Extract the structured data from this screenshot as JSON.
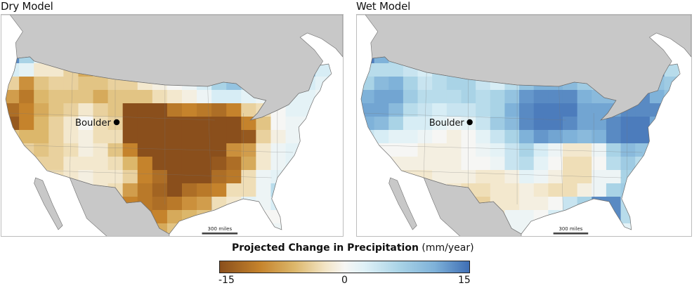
{
  "panels": [
    {
      "id": "dry",
      "title": "Dry Model",
      "city_label": "Boulder",
      "scale_label": "300 miles"
    },
    {
      "id": "wet",
      "title": "Wet Model",
      "city_label": "Boulder",
      "scale_label": "300 miles"
    }
  ],
  "legend": {
    "title_bold": "Projected Change in Precipitation",
    "title_unit": "(mm/year)",
    "ticks": [
      "-15",
      "0",
      "15"
    ],
    "min": -15,
    "max": 15
  },
  "colors": {
    "land_outside": "#c8c8c8",
    "ocean": "#ffffff",
    "border": "#6e6e6e",
    "dry_extreme": "#8a4f1c",
    "wet_extreme": "#3f6fb5",
    "neutral": "#f6f6f4"
  },
  "chart_data": [
    {
      "type": "heatmap",
      "title": "Dry Model",
      "value_label": "Projected Change in Precipitation (mm/year)",
      "range": [
        -15,
        15
      ],
      "annotation": "Boulder",
      "grid_values": [
        [
          13,
          6,
          2,
          0,
          -3,
          -5,
          -4,
          -2,
          2,
          2,
          0,
          -1,
          -1,
          1,
          2,
          3,
          4,
          4,
          3,
          5,
          8,
          6
        ],
        [
          3,
          2,
          -2,
          -2,
          -4,
          -7,
          -4,
          -3,
          1,
          1,
          -1,
          -1,
          1,
          2,
          5,
          6,
          7,
          5,
          3,
          4,
          9,
          3
        ],
        [
          -4,
          -9,
          -5,
          -4,
          -4,
          -5,
          -5,
          -4,
          -4,
          -2,
          -1,
          0,
          1,
          3,
          6,
          8,
          5,
          3,
          2,
          2,
          3,
          2
        ],
        [
          -8,
          -11,
          -6,
          -5,
          -5,
          -5,
          -7,
          -5,
          -5,
          -5,
          -3,
          -2,
          -1,
          1,
          3,
          3,
          2,
          1,
          1,
          2,
          2,
          1
        ],
        [
          -12,
          -10,
          -7,
          -5,
          -4,
          -2,
          -4,
          -5,
          -15,
          -15,
          -15,
          -11,
          -10,
          -11,
          -12,
          -10,
          -4,
          -3,
          0,
          2,
          2,
          1
        ],
        [
          -14,
          -10,
          -6,
          -4,
          -2,
          0,
          -3,
          -4,
          -15,
          -15,
          -15,
          -15,
          -15,
          -15,
          -15,
          -15,
          -10,
          -5,
          0,
          1,
          1,
          1
        ],
        [
          -5,
          -6,
          -6,
          -4,
          -2,
          -1,
          -3,
          -3,
          -15,
          -15,
          -15,
          -15,
          -15,
          -15,
          -15,
          -15,
          -14,
          -4,
          -1,
          1,
          1,
          1
        ],
        [
          -4,
          -4,
          -5,
          -4,
          -3,
          -1,
          -2,
          -5,
          -10,
          -15,
          -15,
          -15,
          -15,
          -15,
          -15,
          -9,
          -8,
          -2,
          1,
          2,
          4,
          1
        ],
        [
          -3,
          -3,
          -4,
          -4,
          -2,
          -2,
          -2,
          -3,
          -6,
          -10,
          -15,
          -15,
          -15,
          -15,
          -14,
          -12,
          -7,
          -2,
          1,
          2,
          1,
          1
        ],
        [
          -2,
          -3,
          -2,
          -3,
          -2,
          -1,
          -2,
          -2,
          -4,
          -10,
          -12,
          -15,
          -15,
          -15,
          -12,
          -11,
          -3,
          1,
          2,
          2,
          1,
          1
        ],
        [
          -1,
          -2,
          -2,
          -2,
          -1,
          -1,
          -2,
          -3,
          -8,
          -11,
          -13,
          -15,
          -12,
          -11,
          -10,
          -3,
          -3,
          1,
          5,
          2,
          1,
          1
        ],
        [
          -1,
          -1,
          -1,
          -1,
          -1,
          -1,
          -2,
          -4,
          -10,
          -11,
          -12,
          -11,
          -9,
          -8,
          -3,
          -2,
          2,
          1,
          3,
          1,
          1,
          1
        ],
        [
          -1,
          -1,
          -1,
          -1,
          -1,
          -1,
          -1,
          -3,
          -11,
          -11,
          -10,
          -7,
          -6,
          -5,
          -2,
          1,
          2,
          0,
          0,
          1,
          3,
          1
        ],
        [
          -1,
          -1,
          -1,
          -1,
          -1,
          -1,
          -1,
          -2,
          -9,
          -10,
          -7,
          -5,
          -3,
          -2,
          0,
          0,
          1,
          1,
          1,
          1,
          1,
          1
        ]
      ]
    },
    {
      "type": "heatmap",
      "title": "Wet Model",
      "value_label": "Projected Change in Precipitation (mm/year)",
      "range": [
        -15,
        15
      ],
      "annotation": "Boulder",
      "grid_values": [
        [
          14,
          10,
          6,
          4,
          2,
          2,
          3,
          5,
          5,
          4,
          4,
          4,
          4,
          6,
          6,
          5,
          3,
          2,
          3,
          6,
          13,
          4
        ],
        [
          5,
          5,
          5,
          4,
          3,
          5,
          6,
          5,
          3,
          2,
          3,
          4,
          8,
          9,
          7,
          6,
          5,
          3,
          5,
          13,
          13,
          5
        ],
        [
          6,
          9,
          10,
          6,
          4,
          5,
          6,
          6,
          4,
          3,
          5,
          8,
          10,
          10,
          9,
          7,
          6,
          5,
          10,
          12,
          8,
          7
        ],
        [
          10,
          11,
          11,
          7,
          5,
          5,
          5,
          6,
          5,
          6,
          8,
          12,
          13,
          13,
          13,
          10,
          9,
          9,
          13,
          13,
          10,
          8
        ],
        [
          11,
          11,
          9,
          5,
          4,
          3,
          4,
          4,
          5,
          6,
          10,
          13,
          14,
          14,
          14,
          11,
          11,
          11,
          13,
          13,
          13,
          9
        ],
        [
          10,
          9,
          6,
          3,
          3,
          2,
          1,
          2,
          4,
          7,
          9,
          13,
          14,
          14,
          13,
          11,
          11,
          13,
          14,
          14,
          11,
          5
        ],
        [
          4,
          3,
          2,
          2,
          1,
          0,
          -1,
          0,
          2,
          4,
          6,
          10,
          12,
          11,
          10,
          9,
          10,
          13,
          14,
          14,
          6,
          3
        ],
        [
          1,
          0,
          0,
          0,
          -1,
          -1,
          -1,
          0,
          1,
          2,
          4,
          6,
          3,
          1,
          -2,
          -2,
          1,
          6,
          9,
          8,
          5,
          3
        ],
        [
          0,
          -1,
          -1,
          -1,
          -1,
          -1,
          -1,
          0,
          0,
          1,
          4,
          5,
          2,
          0,
          -3,
          -3,
          0,
          5,
          7,
          5,
          4,
          3
        ],
        [
          -1,
          -2,
          -2,
          -2,
          -2,
          -1,
          -1,
          -1,
          -2,
          -2,
          -1,
          2,
          1,
          -1,
          -3,
          -3,
          1,
          1,
          6,
          5,
          3,
          2
        ],
        [
          -2,
          -2,
          -2,
          -2,
          -2,
          -1,
          -2,
          -3,
          -3,
          -2,
          -2,
          -1,
          -2,
          -3,
          -3,
          -1,
          1,
          6,
          7,
          5,
          3,
          2
        ],
        [
          -1,
          -1,
          -1,
          -1,
          -1,
          -1,
          -2,
          -3,
          -4,
          -2,
          -2,
          -1,
          -1,
          0,
          4,
          6,
          13,
          13,
          5,
          2,
          2,
          2
        ],
        [
          -1,
          -1,
          -1,
          -1,
          -1,
          -1,
          -1,
          -2,
          -6,
          -2,
          1,
          1,
          0,
          3,
          4,
          6,
          13,
          13,
          5,
          2,
          2,
          -2
        ],
        [
          -1,
          -1,
          -1,
          -1,
          -1,
          -1,
          -1,
          -1,
          -5,
          -3,
          1,
          1,
          1,
          1,
          1,
          1,
          9,
          6,
          2,
          1,
          1,
          -1
        ]
      ]
    }
  ]
}
